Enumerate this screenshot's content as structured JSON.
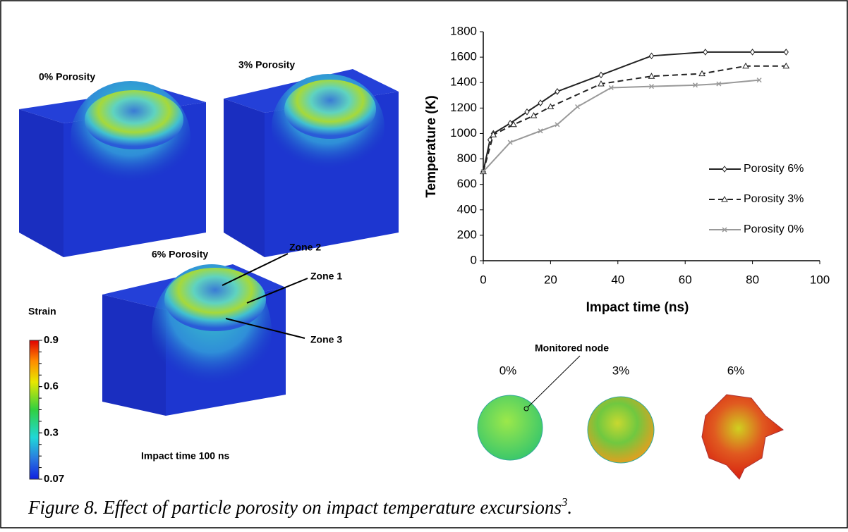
{
  "panels": {
    "porosity_0": "0%  Porosity",
    "porosity_3": "3% Porosity",
    "porosity_6": "6% Porosity",
    "time": "Impact time 100 ns",
    "zones": [
      "Zone 2",
      "Zone 1",
      "Zone 3"
    ]
  },
  "strain_legend": {
    "title": "Strain",
    "ticks": [
      0.9,
      0.6,
      0.3,
      0.07
    ]
  },
  "chart_data": {
    "type": "line",
    "xlabel": "Impact time (ns)",
    "ylabel": "Temperature (K)",
    "xlim": [
      0,
      100
    ],
    "xticks": [
      0,
      20,
      40,
      60,
      80,
      100
    ],
    "ylim": [
      0,
      1800
    ],
    "yticks": [
      0,
      200,
      400,
      600,
      800,
      1000,
      1200,
      1400,
      1600,
      1800
    ],
    "series": [
      {
        "name": "Porosity 6%",
        "color": "#222222",
        "dash": false,
        "marker": "diamond",
        "x": [
          0,
          2,
          3,
          8,
          13,
          17,
          22,
          35,
          50,
          66,
          80,
          90
        ],
        "values": [
          700,
          950,
          1000,
          1080,
          1170,
          1240,
          1330,
          1460,
          1610,
          1640,
          1640,
          1640
        ]
      },
      {
        "name": "Porosity 3%",
        "color": "#222222",
        "dash": true,
        "marker": "triangle",
        "x": [
          0,
          3,
          9,
          15,
          20,
          35,
          50,
          65,
          78,
          90
        ],
        "values": [
          700,
          990,
          1070,
          1140,
          1210,
          1390,
          1450,
          1470,
          1530,
          1530
        ]
      },
      {
        "name": "Porosity 0%",
        "color": "#999999",
        "dash": false,
        "marker": "x",
        "x": [
          0,
          8,
          17,
          22,
          28,
          38,
          50,
          63,
          70,
          82
        ],
        "values": [
          700,
          930,
          1020,
          1070,
          1210,
          1360,
          1370,
          1380,
          1390,
          1420
        ]
      }
    ]
  },
  "particles": {
    "node_label": "Monitored node",
    "labels": [
      "0%",
      "3%",
      "6%"
    ]
  },
  "caption": {
    "text": "Figure 8. Effect of particle porosity on impact temperature excursions",
    "ref": "3",
    "end": "."
  }
}
